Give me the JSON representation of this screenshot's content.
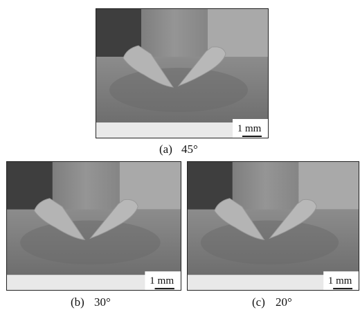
{
  "panels": [
    {
      "label": "(a)",
      "angle": "45°",
      "scale_bar": "1 mm"
    },
    {
      "label": "(b)",
      "angle": "30°",
      "scale_bar": "1 mm"
    },
    {
      "label": "(c)",
      "angle": "20°",
      "scale_bar": "1 mm"
    }
  ]
}
